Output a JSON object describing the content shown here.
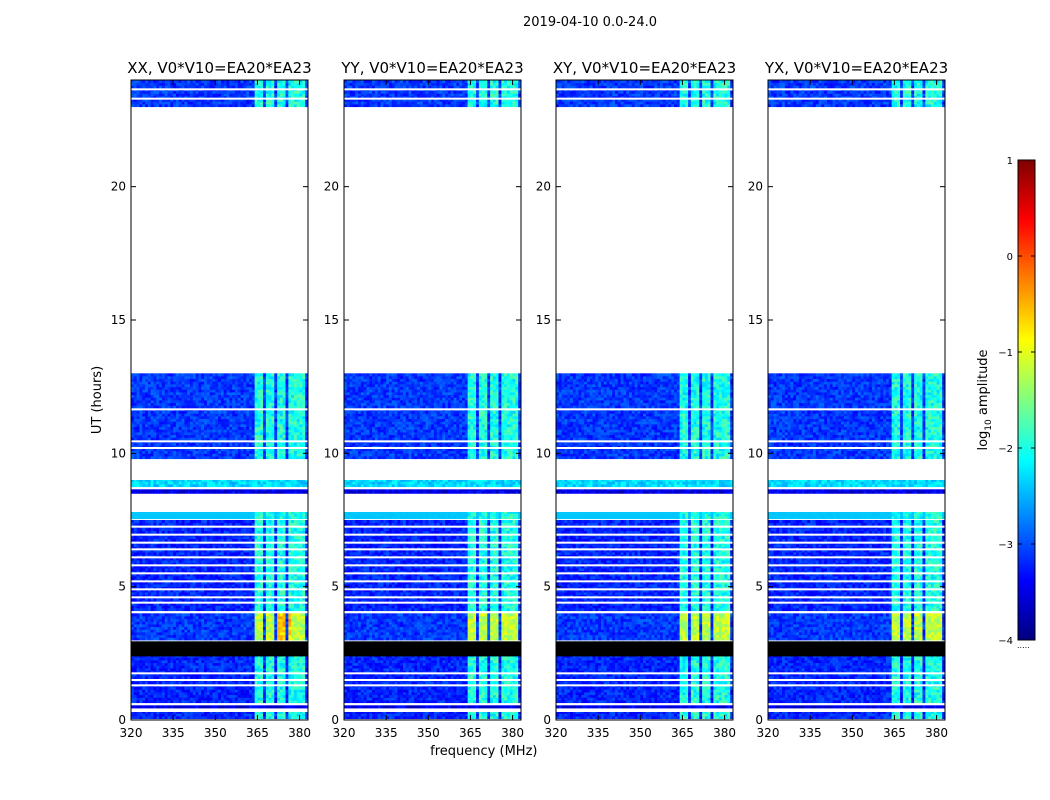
{
  "figure": {
    "suptitle": "2019-04-10 0.0-24.0"
  },
  "chart_data": [
    {
      "type": "heatmap",
      "title": "XX, V0*V10=EA20*EA23",
      "xlabel": "",
      "ylabel": "UT (hours)",
      "xlim": [
        320,
        383
      ],
      "ylim": [
        0,
        24
      ],
      "xticks": [
        "320",
        "335",
        "350",
        "365",
        "380"
      ],
      "yticks": [
        "0",
        "5",
        "10",
        "15",
        "20"
      ]
    },
    {
      "type": "heatmap",
      "title": "YY, V0*V10=EA20*EA23",
      "xlabel": "frequency (MHz)",
      "ylabel": "",
      "xlim": [
        320,
        383
      ],
      "ylim": [
        0,
        24
      ],
      "xticks": [
        "320",
        "335",
        "350",
        "365",
        "380"
      ],
      "yticks": [
        "0",
        "5",
        "10",
        "15",
        "20"
      ]
    },
    {
      "type": "heatmap",
      "title": "XY, V0*V10=EA20*EA23",
      "xlabel": "",
      "ylabel": "",
      "xlim": [
        320,
        383
      ],
      "ylim": [
        0,
        24
      ],
      "xticks": [
        "320",
        "335",
        "350",
        "365",
        "380"
      ],
      "yticks": [
        "0",
        "5",
        "10",
        "15",
        "20"
      ]
    },
    {
      "type": "heatmap",
      "title": "YX, V0*V10=EA20*EA23",
      "xlabel": "",
      "ylabel": "",
      "xlim": [
        320,
        383
      ],
      "ylim": [
        0,
        24
      ],
      "xticks": [
        "320",
        "335",
        "350",
        "365",
        "380"
      ],
      "yticks": [
        "0",
        "5",
        "10",
        "15",
        "20"
      ]
    }
  ],
  "colorbar": {
    "label_prefix": "log",
    "label_subscript": "10",
    "label_suffix": " amplitude",
    "range": [
      -4,
      1
    ],
    "ticks": [
      "1",
      "0",
      "−1",
      "−2",
      "−3",
      "−4"
    ],
    "colors": [
      "#00007f",
      "#0000ff",
      "#0080ff",
      "#00ffff",
      "#80ff80",
      "#ffff00",
      "#ff8000",
      "#ff0000",
      "#7f0000"
    ]
  },
  "data_blocks": {
    "bands": [
      {
        "t0": 0.05,
        "t1": 0.3,
        "level": -3.2,
        "noisy": 1,
        "active": 1
      },
      {
        "t0": 0.45,
        "t1": 0.55,
        "level": -3.5,
        "noisy": 1,
        "active": 0
      },
      {
        "t0": 0.65,
        "t1": 2.4,
        "level": -3.2,
        "noisy": 1,
        "active": 1
      },
      {
        "t0": 2.4,
        "t1": 2.95,
        "level": -9,
        "noisy": 0,
        "active": 0
      },
      {
        "t0": 3.0,
        "t1": 4.0,
        "level": -3.1,
        "noisy": 1,
        "active": 2
      },
      {
        "t0": 4.1,
        "t1": 7.5,
        "level": -3.2,
        "noisy": 1,
        "active": 1
      },
      {
        "t0": 7.55,
        "t1": 7.8,
        "level": -2.4,
        "noisy": 0,
        "active": 1
      },
      {
        "t0": 8.5,
        "t1": 8.65,
        "level": -3.5,
        "noisy": 1,
        "active": 0
      },
      {
        "t0": 8.75,
        "t1": 9.0,
        "level": -2.3,
        "noisy": 1,
        "active": 0
      },
      {
        "t0": 9.8,
        "t1": 13.0,
        "level": -3.1,
        "noisy": 1,
        "active": 1
      },
      {
        "t0": 23.0,
        "t1": 24.0,
        "level": -3.1,
        "noisy": 1,
        "active": 1
      }
    ],
    "gaps": [
      1.3,
      1.5,
      1.75,
      4.4,
      4.6,
      4.9,
      5.2,
      5.5,
      5.8,
      6.1,
      6.4,
      6.65,
      6.95,
      7.25,
      10.2,
      10.45,
      11.65,
      23.3,
      23.65
    ],
    "active_freqs": [
      {
        "f0": 363.5,
        "f1": 366.5
      },
      {
        "f0": 367.5,
        "f1": 370.5
      },
      {
        "f0": 371.5,
        "f1": 374.5
      },
      {
        "f0": 375.8,
        "f1": 378.5
      },
      {
        "f0": 379.0,
        "f1": 381.5
      }
    ],
    "band_mapping": {
      "panel_offsets": [
        0,
        0.05,
        0,
        0.05
      ]
    }
  }
}
